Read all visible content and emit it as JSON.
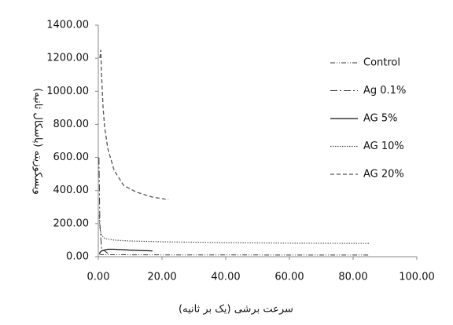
{
  "chart_data": {
    "type": "line",
    "xlabel": "سرعت برشی (یک بر ثانیه)",
    "ylabel": "ویسکوزیته (پاسکال ثانیه)",
    "series": [
      {
        "name": "Control",
        "color": "#333333",
        "x": [
          0.3,
          1,
          5,
          20,
          40,
          60,
          85
        ],
        "values": [
          15,
          12,
          12,
          11,
          11,
          10,
          10
        ]
      },
      {
        "name": "Ag 0.1%",
        "color": "#333333",
        "x": [
          0.2,
          0.5,
          1,
          3
        ],
        "values": [
          600,
          200,
          50,
          20
        ]
      },
      {
        "name": "AG 5%",
        "color": "#111111",
        "x": [
          0.3,
          1,
          3,
          5,
          10,
          17
        ],
        "values": [
          20,
          35,
          45,
          45,
          40,
          35
        ]
      },
      {
        "name": "AG 10%",
        "color": "#555555",
        "x": [
          0.3,
          0.5,
          1,
          2,
          5,
          10,
          20,
          40,
          60,
          85
        ],
        "values": [
          250,
          170,
          130,
          110,
          100,
          95,
          90,
          85,
          82,
          80
        ]
      },
      {
        "name": "AG 20%",
        "color": "#555555",
        "x": [
          0.5,
          0.8,
          1,
          1.5,
          2,
          3,
          5,
          8,
          12,
          17,
          22
        ],
        "values": [
          1200,
          1250,
          1100,
          900,
          780,
          650,
          520,
          430,
          390,
          360,
          345
        ]
      }
    ],
    "xlim": [
      0,
      100
    ],
    "xticks": [
      {
        "value": 0,
        "label": "0.00"
      },
      {
        "value": 20,
        "label": "20.00"
      },
      {
        "value": 40,
        "label": "40.00"
      },
      {
        "value": 60,
        "label": "60.00"
      },
      {
        "value": 80,
        "label": "80.00"
      },
      {
        "value": 100,
        "label": "100.00"
      }
    ],
    "ylim": [
      0,
      1400
    ],
    "yticks": [
      {
        "value": 0,
        "label": "0.00"
      },
      {
        "value": 200,
        "label": "200.00"
      },
      {
        "value": 400,
        "label": "400.00"
      },
      {
        "value": 600,
        "label": "600.00"
      },
      {
        "value": 800,
        "label": "800.00"
      },
      {
        "value": 1000,
        "label": "1000.00"
      },
      {
        "value": 1200,
        "label": "1200.00"
      },
      {
        "value": 1400,
        "label": "1400.00"
      }
    ],
    "grid": false
  }
}
